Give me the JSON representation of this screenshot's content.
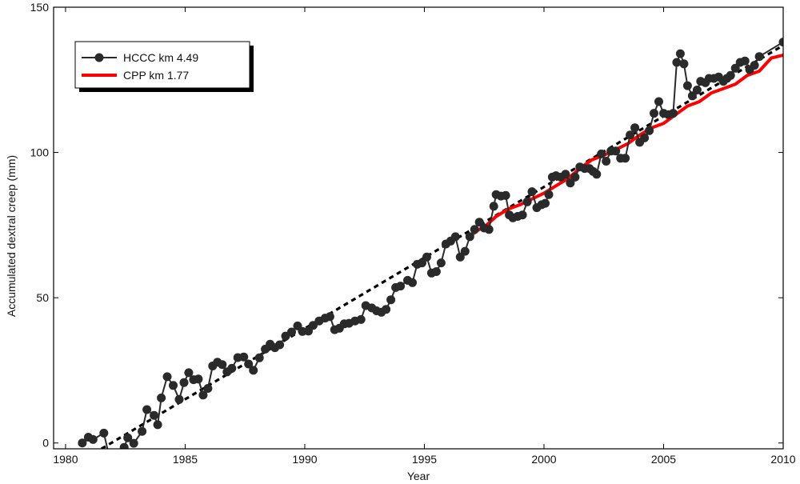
{
  "chart_data": {
    "type": "line",
    "title": "",
    "xlabel": "Year",
    "ylabel": "Accumulated dextral creep (mm)",
    "xlim": [
      1979.5,
      2010
    ],
    "ylim": [
      -2,
      150
    ],
    "xticks": [
      1980,
      1985,
      1990,
      1995,
      2000,
      2005,
      2010
    ],
    "yticks": [
      0,
      50,
      100,
      150
    ],
    "legend_position": "top-left",
    "colors": {
      "hccc": "#2a2a2a",
      "cpp": "#ff0000",
      "trend": "#000000"
    },
    "series": [
      {
        "name": "HCCC km 4.49",
        "style": "line-markers",
        "points": [
          [
            1980.7,
            0.0
          ],
          [
            1980.95,
            2.0
          ],
          [
            1981.15,
            1.2
          ],
          [
            1981.6,
            3.4
          ],
          [
            1981.85,
            -5.5
          ],
          [
            1982.2,
            -4.0
          ],
          [
            1982.45,
            -1.5
          ],
          [
            1982.6,
            1.8
          ],
          [
            1982.85,
            -0.1
          ],
          [
            1983.2,
            4.0
          ],
          [
            1983.4,
            11.5
          ],
          [
            1983.7,
            9.5
          ],
          [
            1983.85,
            6.3
          ],
          [
            1984.0,
            15.5
          ],
          [
            1984.25,
            22.8
          ],
          [
            1984.5,
            19.8
          ],
          [
            1984.75,
            15.0
          ],
          [
            1984.95,
            20.8
          ],
          [
            1985.15,
            24.2
          ],
          [
            1985.35,
            21.8
          ],
          [
            1985.55,
            22.0
          ],
          [
            1985.75,
            16.5
          ],
          [
            1985.95,
            18.8
          ],
          [
            1986.15,
            26.5
          ],
          [
            1986.35,
            27.8
          ],
          [
            1986.55,
            27.0
          ],
          [
            1986.75,
            24.5
          ],
          [
            1986.95,
            25.7
          ],
          [
            1987.2,
            29.4
          ],
          [
            1987.45,
            29.6
          ],
          [
            1987.65,
            27.2
          ],
          [
            1987.85,
            25.0
          ],
          [
            1988.1,
            29.3
          ],
          [
            1988.35,
            32.3
          ],
          [
            1988.55,
            34.0
          ],
          [
            1988.75,
            32.8
          ],
          [
            1988.95,
            33.8
          ],
          [
            1989.2,
            36.8
          ],
          [
            1989.45,
            38.2
          ],
          [
            1989.7,
            40.3
          ],
          [
            1989.9,
            38.4
          ],
          [
            1990.15,
            38.5
          ],
          [
            1990.35,
            40.5
          ],
          [
            1990.6,
            42.0
          ],
          [
            1990.85,
            43.0
          ],
          [
            1991.05,
            43.5
          ],
          [
            1991.25,
            39.0
          ],
          [
            1991.45,
            39.5
          ],
          [
            1991.65,
            41.0
          ],
          [
            1991.85,
            41.2
          ],
          [
            1992.1,
            42.0
          ],
          [
            1992.35,
            42.5
          ],
          [
            1992.55,
            47.3
          ],
          [
            1992.8,
            46.5
          ],
          [
            1993.0,
            45.5
          ],
          [
            1993.2,
            45.0
          ],
          [
            1993.4,
            46.0
          ],
          [
            1993.6,
            49.3
          ],
          [
            1993.8,
            53.5
          ],
          [
            1994.0,
            54.0
          ],
          [
            1994.3,
            56.0
          ],
          [
            1994.5,
            55.2
          ],
          [
            1994.7,
            61.5
          ],
          [
            1994.9,
            62.0
          ],
          [
            1995.1,
            64.0
          ],
          [
            1995.3,
            58.5
          ],
          [
            1995.5,
            59.0
          ],
          [
            1995.7,
            62.0
          ],
          [
            1995.9,
            68.5
          ],
          [
            1996.1,
            69.5
          ],
          [
            1996.3,
            71.0
          ],
          [
            1996.5,
            64.0
          ],
          [
            1996.7,
            66.0
          ],
          [
            1996.9,
            71.0
          ],
          [
            1997.1,
            73.5
          ],
          [
            1997.3,
            76.0
          ],
          [
            1997.5,
            74.0
          ],
          [
            1997.7,
            73.5
          ],
          [
            1997.9,
            81.5
          ],
          [
            1998.0,
            85.5
          ],
          [
            1998.2,
            85.0
          ],
          [
            1998.4,
            85.2
          ],
          [
            1998.55,
            78.5
          ],
          [
            1998.7,
            77.5
          ],
          [
            1998.9,
            78.0
          ],
          [
            1999.1,
            78.5
          ],
          [
            1999.3,
            83.0
          ],
          [
            1999.5,
            86.5
          ],
          [
            1999.7,
            81.0
          ],
          [
            1999.9,
            82.0
          ],
          [
            2000.05,
            82.5
          ],
          [
            2000.2,
            85.5
          ],
          [
            2000.35,
            91.5
          ],
          [
            2000.5,
            92.0
          ],
          [
            2000.7,
            91.5
          ],
          [
            2000.9,
            92.5
          ],
          [
            2001.1,
            89.5
          ],
          [
            2001.3,
            91.5
          ],
          [
            2001.5,
            95.0
          ],
          [
            2001.7,
            94.5
          ],
          [
            2001.9,
            94.5
          ],
          [
            2002.05,
            93.5
          ],
          [
            2002.2,
            92.5
          ],
          [
            2002.4,
            99.5
          ],
          [
            2002.6,
            97.0
          ],
          [
            2002.8,
            100.5
          ],
          [
            2003.0,
            100.5
          ],
          [
            2003.2,
            98.0
          ],
          [
            2003.4,
            98.0
          ],
          [
            2003.6,
            106.0
          ],
          [
            2003.8,
            108.5
          ],
          [
            2004.0,
            103.5
          ],
          [
            2004.2,
            105.0
          ],
          [
            2004.4,
            107.5
          ],
          [
            2004.6,
            113.5
          ],
          [
            2004.8,
            117.5
          ],
          [
            2005.0,
            113.5
          ],
          [
            2005.2,
            113.0
          ],
          [
            2005.4,
            113.5
          ],
          [
            2005.55,
            131.0
          ],
          [
            2005.7,
            134.0
          ],
          [
            2005.85,
            130.5
          ],
          [
            2006.0,
            123.0
          ],
          [
            2006.2,
            119.5
          ],
          [
            2006.4,
            121.5
          ],
          [
            2006.55,
            124.5
          ],
          [
            2006.75,
            124.0
          ],
          [
            2006.9,
            125.5
          ],
          [
            2007.1,
            125.5
          ],
          [
            2007.3,
            126.0
          ],
          [
            2007.5,
            124.5
          ],
          [
            2007.65,
            125.5
          ],
          [
            2007.8,
            126.5
          ],
          [
            2008.0,
            129.0
          ],
          [
            2008.2,
            131.0
          ],
          [
            2008.4,
            131.5
          ],
          [
            2008.6,
            128.5
          ],
          [
            2008.8,
            130.0
          ],
          [
            2009.0,
            133.0
          ],
          [
            2010.0,
            138.0
          ],
          [
            2010.95,
            140.0
          ]
        ]
      },
      {
        "name": "CPP km 1.77",
        "style": "line",
        "points": [
          [
            1996.8,
            70.5
          ],
          [
            1997.2,
            73.0
          ],
          [
            1997.6,
            75.0
          ],
          [
            1998.0,
            78.0
          ],
          [
            1998.5,
            80.5
          ],
          [
            1999.0,
            82.0
          ],
          [
            1999.5,
            84.0
          ],
          [
            2000.0,
            86.0
          ],
          [
            2000.5,
            88.5
          ],
          [
            2001.0,
            91.0
          ],
          [
            2001.5,
            94.5
          ],
          [
            2002.0,
            97.5
          ],
          [
            2002.5,
            99.0
          ],
          [
            2003.0,
            101.0
          ],
          [
            2003.5,
            103.0
          ],
          [
            2004.0,
            106.0
          ],
          [
            2004.5,
            108.5
          ],
          [
            2005.0,
            110.0
          ],
          [
            2005.5,
            113.0
          ],
          [
            2006.0,
            116.0
          ],
          [
            2006.5,
            117.5
          ],
          [
            2007.0,
            120.5
          ],
          [
            2007.5,
            122.0
          ],
          [
            2008.0,
            123.5
          ],
          [
            2008.5,
            126.5
          ],
          [
            2009.0,
            128.0
          ],
          [
            2009.5,
            132.5
          ],
          [
            2010.0,
            133.5
          ],
          [
            2010.5,
            137.5
          ],
          [
            2010.95,
            139.5
          ]
        ]
      },
      {
        "style": "dashed",
        "points": [
          [
            1981.5,
            -2.0
          ],
          [
            2010.95,
            141.5
          ]
        ]
      }
    ]
  }
}
